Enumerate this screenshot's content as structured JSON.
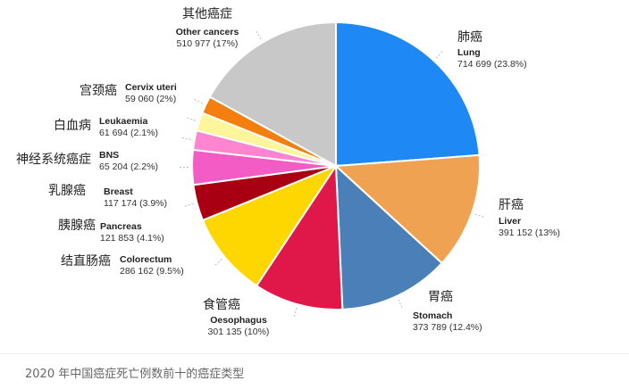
{
  "caption": "2020 年中国癌症死亡例数前十的癌症类型",
  "chart_data": {
    "type": "pie",
    "title": "",
    "start_angle_deg": 0,
    "direction": "clockwise",
    "slices": [
      {
        "name_zh": "肺癌",
        "name_en": "Lung",
        "value": 714699,
        "value_label": "714 699 (23.8%)",
        "percent": 23.8,
        "color": "#1e88f5"
      },
      {
        "name_zh": "肝癌",
        "name_en": "Liver",
        "value": 391152,
        "value_label": "391 152 (13%)",
        "percent": 13.0,
        "color": "#f0a253"
      },
      {
        "name_zh": "胃癌",
        "name_en": "Stomach",
        "value": 373789,
        "value_label": "373 789 (12.4%)",
        "percent": 12.4,
        "color": "#4a7fb7"
      },
      {
        "name_zh": "食管癌",
        "name_en": "Oesophagus",
        "value": 301135,
        "value_label": "301 135 (10%)",
        "percent": 10.0,
        "color": "#e0184a"
      },
      {
        "name_zh": "结直肠癌",
        "name_en": "Colorectum",
        "value": 286162,
        "value_label": "286 162 (9.5%)",
        "percent": 9.5,
        "color": "#ffd700"
      },
      {
        "name_zh": "胰腺癌",
        "name_en": "Pancreas",
        "value": 121853,
        "value_label": "121 853 (4.1%)",
        "percent": 4.1,
        "color": "#a80012"
      },
      {
        "name_zh": "乳腺癌",
        "name_en": "Breast",
        "value": 117174,
        "value_label": "117 174 (3.9%)",
        "percent": 3.9,
        "color": "#f25cc4"
      },
      {
        "name_zh": "神经系统癌症",
        "name_en": "BNS",
        "value": 65204,
        "value_label": "65 204 (2.2%)",
        "percent": 2.2,
        "color": "#ff85d0"
      },
      {
        "name_zh": "白血病",
        "name_en": "Leukaemia",
        "value": 61694,
        "value_label": "61 694 (2.1%)",
        "percent": 2.1,
        "color": "#fff59a"
      },
      {
        "name_zh": "宫颈癌",
        "name_en": "Cervix uteri",
        "value": 59060,
        "value_label": "59 060 (2%)",
        "percent": 2.0,
        "color": "#f57f0e"
      },
      {
        "name_zh": "其他癌症",
        "name_en": "Other cancers",
        "value": 510977,
        "value_label": "510 977 (17%)",
        "percent": 17.0,
        "color": "#c8c8c8"
      }
    ]
  }
}
